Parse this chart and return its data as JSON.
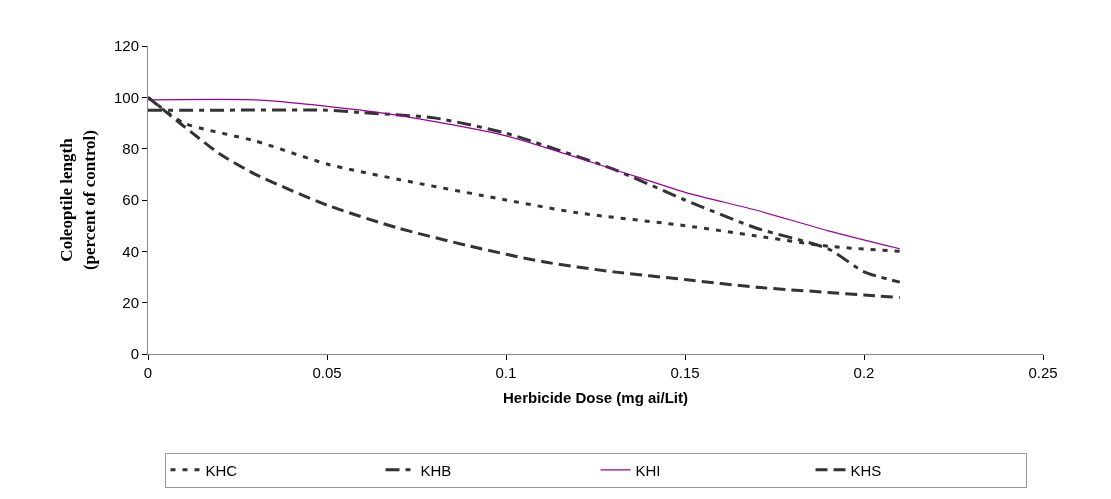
{
  "chart_data": {
    "type": "line",
    "xlabel": "Herbicide Dose (mg ai/Lit)",
    "ylabel": "Coleoptile length\n(percent of control)",
    "xlim": [
      0,
      0.25
    ],
    "xticks": [
      0,
      0.05,
      0.1,
      0.15,
      0.2,
      0.25
    ],
    "ylim": [
      0,
      120
    ],
    "yticks": [
      0,
      20,
      40,
      60,
      80,
      100,
      120
    ],
    "grid": false,
    "legend": "bottom",
    "marker": "none",
    "series": [
      {
        "name": "KHC",
        "color": "#333333",
        "line_style": "dotted",
        "x": [
          0,
          0.01,
          0.03,
          0.05,
          0.07,
          0.1,
          0.12,
          0.15,
          0.17,
          0.19,
          0.21
        ],
        "values": [
          100,
          90,
          83,
          74,
          68,
          60,
          55,
          50,
          46,
          42,
          40
        ]
      },
      {
        "name": "KHB",
        "color": "#333333",
        "line_style": "dashdot",
        "x": [
          0,
          0.02,
          0.05,
          0.06,
          0.08,
          0.1,
          0.13,
          0.15,
          0.17,
          0.19,
          0.2,
          0.21
        ],
        "values": [
          95,
          95,
          95,
          94,
          92,
          86,
          72,
          60,
          49,
          41,
          32,
          28
        ]
      },
      {
        "name": "KHI",
        "color": "#990099",
        "line_style": "solid",
        "x": [
          0,
          0.03,
          0.05,
          0.07,
          0.1,
          0.13,
          0.15,
          0.17,
          0.19,
          0.21
        ],
        "values": [
          99,
          99,
          96.5,
          93,
          85,
          72,
          63,
          56,
          48,
          41
        ]
      },
      {
        "name": "KHS",
        "color": "#333333",
        "line_style": "dashed",
        "x": [
          0,
          0.02,
          0.03,
          0.05,
          0.07,
          0.09,
          0.11,
          0.13,
          0.15,
          0.17,
          0.19,
          0.2,
          0.21
        ],
        "values": [
          100,
          78,
          70,
          58,
          49,
          42,
          36,
          32,
          29,
          26,
          24,
          23,
          22
        ]
      }
    ]
  }
}
